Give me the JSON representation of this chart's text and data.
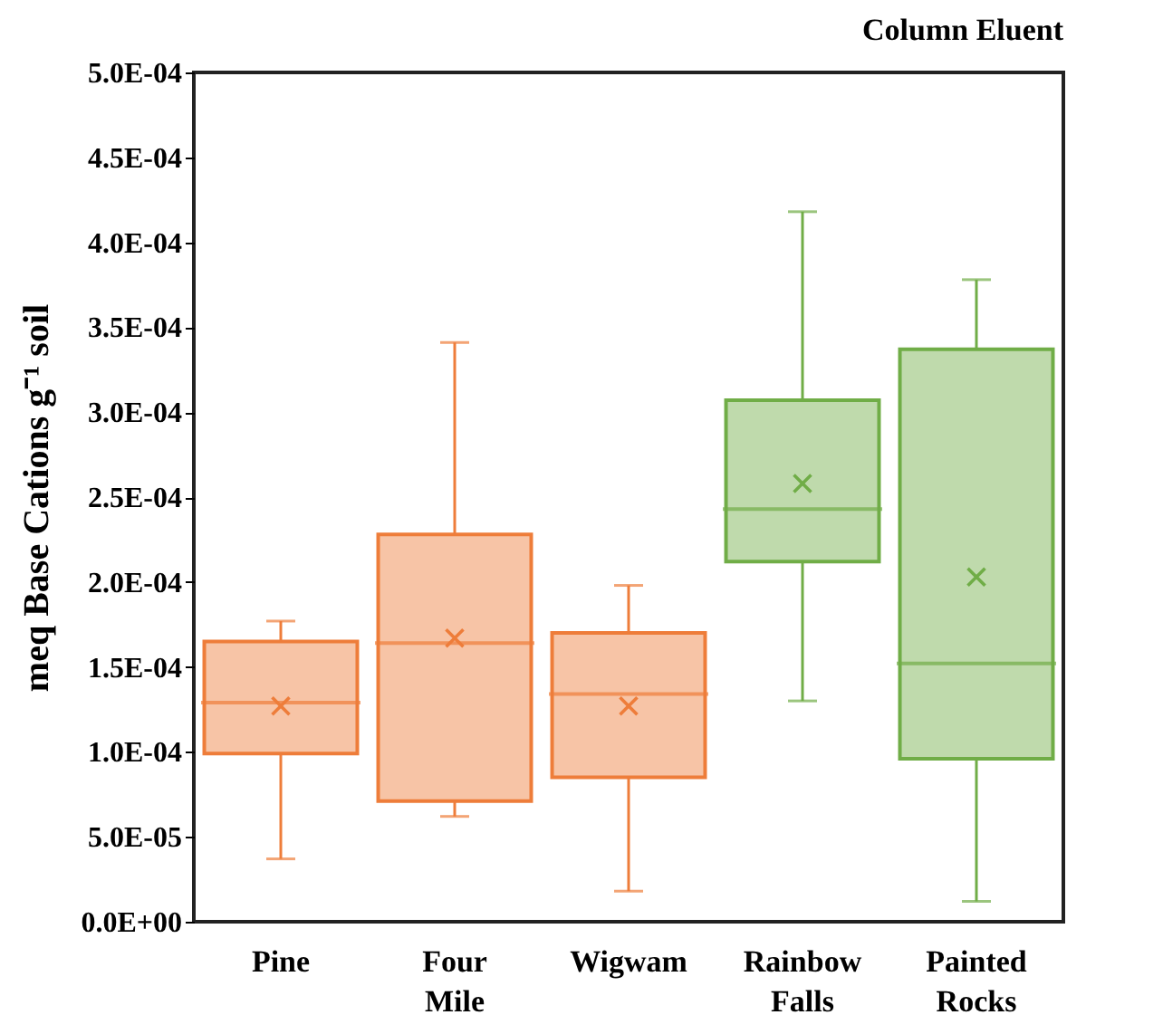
{
  "chart_data": {
    "type": "box",
    "title": "Column Eluent",
    "ylabel": "meq Base Cations g⁻¹ soil",
    "categories": [
      "Pine",
      "Four Mile",
      "Wigwam",
      "Rainbow Falls",
      "Painted Rocks"
    ],
    "colors": [
      "#ee7d3a",
      "#ee7d3a",
      "#ee7d3a",
      "#70ad47",
      "#70ad47"
    ],
    "boxes": [
      {
        "low": 3.7e-05,
        "q1": 9.9e-05,
        "median": 0.000129,
        "q3": 0.000165,
        "high": 0.000177,
        "mean": 0.000127
      },
      {
        "low": 6.2e-05,
        "q1": 7.1e-05,
        "median": 0.000164,
        "q3": 0.000228,
        "high": 0.000341,
        "mean": 0.000167
      },
      {
        "low": 1.8e-05,
        "q1": 8.5e-05,
        "median": 0.000134,
        "q3": 0.00017,
        "high": 0.000198,
        "mean": 0.000127
      },
      {
        "low": 0.00013,
        "q1": 0.000212,
        "median": 0.000243,
        "q3": 0.000307,
        "high": 0.000418,
        "mean": 0.000258
      },
      {
        "low": 1.2e-05,
        "q1": 9.6e-05,
        "median": 0.000152,
        "q3": 0.000337,
        "high": 0.000378,
        "mean": 0.000203
      }
    ],
    "ylim": [
      0,
      0.0005
    ],
    "yticks": [
      {
        "value": 0,
        "label": "0.0E+00"
      },
      {
        "value": 5e-05,
        "label": "5.0E-05"
      },
      {
        "value": 0.0001,
        "label": "1.0E-04"
      },
      {
        "value": 0.00015,
        "label": "1.5E-04"
      },
      {
        "value": 0.0002,
        "label": "2.0E-04"
      },
      {
        "value": 0.00025,
        "label": "2.5E-04"
      },
      {
        "value": 0.0003,
        "label": "3.0E-04"
      },
      {
        "value": 0.00035,
        "label": "3.5E-04"
      },
      {
        "value": 0.0004,
        "label": "4.0E-04"
      },
      {
        "value": 0.00045,
        "label": "4.5E-04"
      },
      {
        "value": 0.0005,
        "label": "5.0E-04"
      }
    ],
    "marker": "cross"
  }
}
